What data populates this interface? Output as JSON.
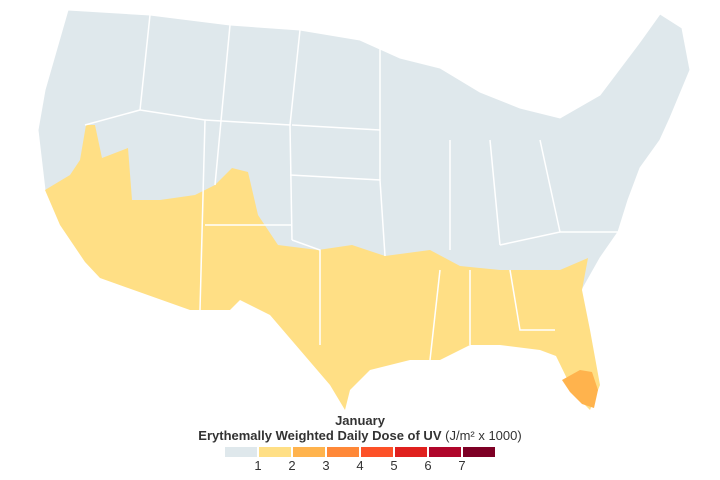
{
  "month": "January",
  "legend": {
    "title": "Erythemally Weighted Daily Dose of UV",
    "unit": "(J/m² x 1000)",
    "colors": [
      "#dfe8ec",
      "#ffdf85",
      "#ffb34d",
      "#ff8838",
      "#fd5128",
      "#e0201e",
      "#b0052a",
      "#7e0025"
    ],
    "labels": [
      "1",
      "2",
      "3",
      "4",
      "5",
      "6",
      "7"
    ]
  },
  "map": {
    "region": "Contiguous United States, county level",
    "colors": {
      "land_low": "#dfe8ec",
      "level2": "#ffdf85",
      "level3": "#ffb34d",
      "borders": "#ffffff"
    }
  }
}
